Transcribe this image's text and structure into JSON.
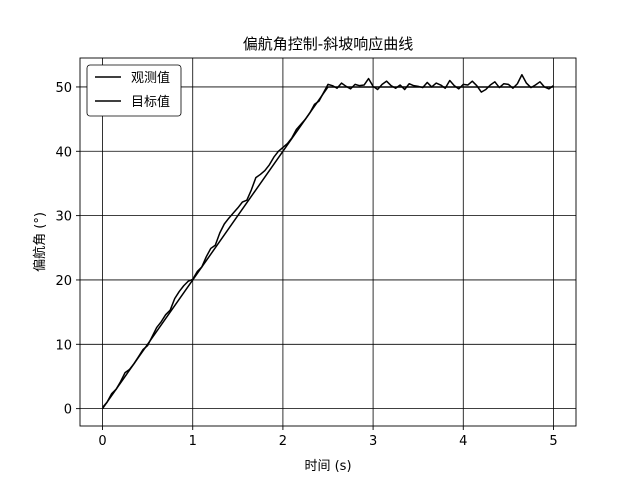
{
  "chart_data": {
    "type": "line",
    "title": "偏航角控制-斜坡响应曲线",
    "xlabel": "时间 (s)",
    "ylabel": "偏航角 (°)",
    "xlim": [
      -0.25,
      5.25
    ],
    "ylim": [
      -2.7,
      54.5
    ],
    "xticks": [
      0,
      1,
      2,
      3,
      4,
      5
    ],
    "yticks": [
      0,
      10,
      20,
      30,
      40,
      50
    ],
    "grid": true,
    "legend_position": "top-left",
    "series": [
      {
        "name": "观测值",
        "color": "#000000",
        "x": [
          0,
          0.05,
          0.1,
          0.15,
          0.2,
          0.25,
          0.3,
          0.35,
          0.4,
          0.45,
          0.5,
          0.55,
          0.6,
          0.65,
          0.7,
          0.75,
          0.8,
          0.85,
          0.9,
          0.95,
          1.0,
          1.05,
          1.1,
          1.15,
          1.2,
          1.25,
          1.3,
          1.35,
          1.4,
          1.45,
          1.5,
          1.55,
          1.6,
          1.65,
          1.7,
          1.75,
          1.8,
          1.85,
          1.9,
          1.95,
          2.0,
          2.05,
          2.1,
          2.15,
          2.2,
          2.25,
          2.3,
          2.35,
          2.4,
          2.45,
          2.5,
          2.55,
          2.6,
          2.65,
          2.7,
          2.75,
          2.8,
          2.85,
          2.9,
          2.95,
          3.0,
          3.05,
          3.1,
          3.15,
          3.2,
          3.25,
          3.3,
          3.35,
          3.4,
          3.45,
          3.5,
          3.55,
          3.6,
          3.65,
          3.7,
          3.75,
          3.8,
          3.85,
          3.9,
          3.95,
          4.0,
          4.05,
          4.1,
          4.15,
          4.2,
          4.25,
          4.3,
          4.35,
          4.4,
          4.45,
          4.5,
          4.55,
          4.6,
          4.65,
          4.7,
          4.75,
          4.8,
          4.85,
          4.9,
          4.95,
          5.0
        ],
        "y": [
          0.2,
          1.0,
          2.3,
          3.0,
          4.2,
          5.6,
          6.1,
          7.0,
          8.1,
          9.2,
          9.8,
          11.2,
          12.6,
          13.5,
          14.6,
          15.3,
          17.1,
          18.2,
          19.1,
          19.8,
          20.1,
          21.3,
          22.0,
          23.6,
          24.9,
          25.4,
          27.3,
          28.7,
          29.6,
          30.4,
          31.2,
          32.1,
          32.4,
          34.0,
          35.9,
          36.4,
          37.0,
          37.9,
          39.1,
          40.0,
          40.6,
          41.2,
          42.1,
          43.4,
          44.2,
          45.0,
          46.0,
          47.3,
          47.8,
          49.1,
          50.4,
          50.2,
          49.8,
          50.6,
          50.1,
          49.7,
          50.4,
          50.2,
          50.3,
          51.3,
          50.1,
          49.6,
          50.4,
          50.9,
          50.2,
          49.8,
          50.3,
          49.6,
          50.5,
          50.2,
          50.1,
          49.9,
          50.7,
          50.0,
          50.6,
          50.3,
          49.8,
          51.0,
          50.2,
          49.7,
          50.4,
          50.3,
          50.9,
          50.2,
          49.2,
          49.6,
          50.3,
          50.8,
          49.9,
          50.5,
          50.4,
          49.8,
          50.5,
          51.9,
          50.6,
          49.9,
          50.3,
          50.8,
          50.0,
          49.7,
          50.2
        ]
      },
      {
        "name": "目标值",
        "color": "#000000",
        "x": [
          0,
          2.5,
          5.0
        ],
        "y": [
          0,
          50,
          50
        ]
      }
    ]
  }
}
